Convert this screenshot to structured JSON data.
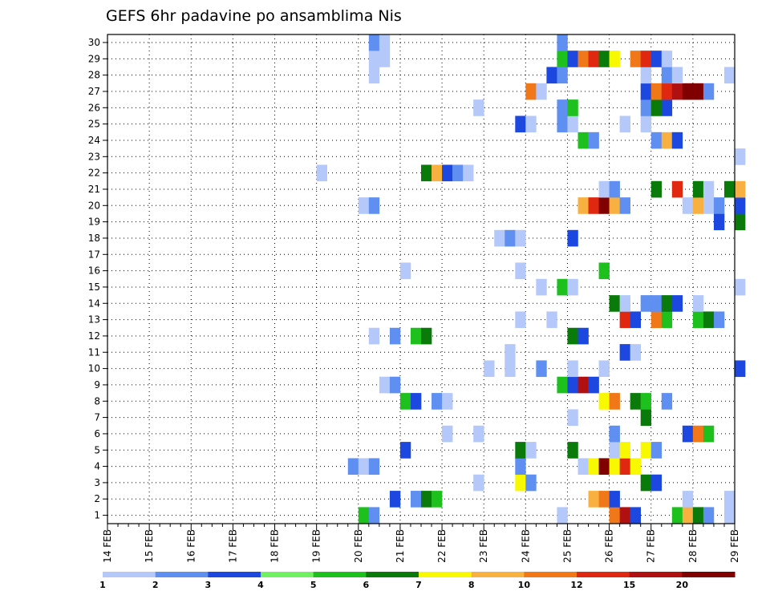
{
  "chart_data": {
    "type": "heatmap",
    "title": "GEFS 6hr padavine po ansamblima Nis",
    "x_ticks": [
      "14 FEB",
      "15 FEB",
      "16 FEB",
      "17 FEB",
      "18 FEB",
      "19 FEB",
      "20 FEB",
      "21 FEB",
      "22 FEB",
      "23 FEB",
      "24 FEB",
      "25 FEB",
      "26 FEB",
      "27 FEB",
      "28 FEB",
      "29 FEB"
    ],
    "y_ticks": [
      "1",
      "2",
      "3",
      "4",
      "5",
      "6",
      "7",
      "8",
      "9",
      "10",
      "11",
      "12",
      "13",
      "14",
      "15",
      "16",
      "17",
      "18",
      "19",
      "20",
      "21",
      "22",
      "23",
      "24",
      "25",
      "26",
      "27",
      "28",
      "29",
      "30"
    ],
    "x_range": [
      "14 FEB",
      "29 FEB"
    ],
    "y_range": [
      1,
      30
    ],
    "time_step_hours": 6,
    "grid": "dotted",
    "colorbar": {
      "position": "bottom",
      "labels": [
        "1",
        "2",
        "3",
        "4",
        "5",
        "6",
        "7",
        "8",
        "10",
        "12",
        "15",
        "20"
      ],
      "colors": [
        "#b4c8fa",
        "#5f8ff0",
        "#1c48e0",
        "#6ef060",
        "#1ec01e",
        "#0a7a0a",
        "#f8f800",
        "#f8b040",
        "#f07818",
        "#e02810",
        "#b01010",
        "#800000"
      ]
    },
    "cells": [
      [
        "20 FEB 00Z",
        1,
        5
      ],
      [
        "20 FEB 06Z",
        1,
        2
      ],
      [
        "24 FEB 18Z",
        1,
        1
      ],
      [
        "26 FEB 00Z",
        1,
        10
      ],
      [
        "26 FEB 06Z",
        1,
        15
      ],
      [
        "26 FEB 12Z",
        1,
        3
      ],
      [
        "27 FEB 12Z",
        1,
        5
      ],
      [
        "27 FEB 18Z",
        1,
        8
      ],
      [
        "28 FEB 00Z",
        1,
        6
      ],
      [
        "28 FEB 06Z",
        1,
        2
      ],
      [
        "28 FEB 18Z",
        1,
        1
      ],
      [
        "20 FEB 18Z",
        2,
        3
      ],
      [
        "21 FEB 06Z",
        2,
        2
      ],
      [
        "21 FEB 12Z",
        2,
        6
      ],
      [
        "21 FEB 18Z",
        2,
        5
      ],
      [
        "25 FEB 12Z",
        2,
        8
      ],
      [
        "25 FEB 18Z",
        2,
        10
      ],
      [
        "26 FEB 00Z",
        2,
        3
      ],
      [
        "27 FEB 18Z",
        2,
        1
      ],
      [
        "28 FEB 18Z",
        2,
        1
      ],
      [
        "22 FEB 18Z",
        3,
        1
      ],
      [
        "23 FEB 18Z",
        3,
        7
      ],
      [
        "24 FEB 00Z",
        3,
        2
      ],
      [
        "26 FEB 18Z",
        3,
        6
      ],
      [
        "27 FEB 00Z",
        3,
        3
      ],
      [
        "19 FEB 18Z",
        4,
        2
      ],
      [
        "20 FEB 00Z",
        4,
        1
      ],
      [
        "20 FEB 06Z",
        4,
        2
      ],
      [
        "23 FEB 18Z",
        4,
        2
      ],
      [
        "25 FEB 06Z",
        4,
        1
      ],
      [
        "25 FEB 12Z",
        4,
        7
      ],
      [
        "25 FEB 18Z",
        4,
        20
      ],
      [
        "26 FEB 00Z",
        4,
        7
      ],
      [
        "26 FEB 06Z",
        4,
        12
      ],
      [
        "26 FEB 12Z",
        4,
        7
      ],
      [
        "21 FEB 00Z",
        5,
        3
      ],
      [
        "23 FEB 18Z",
        5,
        6
      ],
      [
        "24 FEB 00Z",
        5,
        1
      ],
      [
        "25 FEB 00Z",
        5,
        6
      ],
      [
        "26 FEB 00Z",
        5,
        1
      ],
      [
        "26 FEB 06Z",
        5,
        7
      ],
      [
        "26 FEB 18Z",
        5,
        7
      ],
      [
        "27 FEB 00Z",
        5,
        2
      ],
      [
        "22 FEB 00Z",
        6,
        1
      ],
      [
        "22 FEB 18Z",
        6,
        1
      ],
      [
        "26 FEB 00Z",
        6,
        2
      ],
      [
        "27 FEB 18Z",
        6,
        3
      ],
      [
        "28 FEB 00Z",
        6,
        10
      ],
      [
        "28 FEB 06Z",
        6,
        5
      ],
      [
        "25 FEB 00Z",
        7,
        1
      ],
      [
        "26 FEB 18Z",
        7,
        6
      ],
      [
        "21 FEB 00Z",
        8,
        5
      ],
      [
        "21 FEB 06Z",
        8,
        3
      ],
      [
        "21 FEB 18Z",
        8,
        2
      ],
      [
        "22 FEB 00Z",
        8,
        1
      ],
      [
        "25 FEB 18Z",
        8,
        7
      ],
      [
        "26 FEB 00Z",
        8,
        10
      ],
      [
        "26 FEB 12Z",
        8,
        6
      ],
      [
        "26 FEB 18Z",
        8,
        5
      ],
      [
        "27 FEB 06Z",
        8,
        2
      ],
      [
        "20 FEB 12Z",
        9,
        1
      ],
      [
        "20 FEB 18Z",
        9,
        2
      ],
      [
        "24 FEB 18Z",
        9,
        5
      ],
      [
        "25 FEB 00Z",
        9,
        3
      ],
      [
        "25 FEB 06Z",
        9,
        15
      ],
      [
        "25 FEB 12Z",
        9,
        3
      ],
      [
        "23 FEB 00Z",
        10,
        1
      ],
      [
        "23 FEB 12Z",
        10,
        1
      ],
      [
        "24 FEB 06Z",
        10,
        2
      ],
      [
        "25 FEB 00Z",
        10,
        1
      ],
      [
        "25 FEB 18Z",
        10,
        1
      ],
      [
        "29 FEB 00Z",
        10,
        3
      ],
      [
        "23 FEB 12Z",
        11,
        1
      ],
      [
        "26 FEB 06Z",
        11,
        3
      ],
      [
        "26 FEB 12Z",
        11,
        1
      ],
      [
        "20 FEB 06Z",
        12,
        1
      ],
      [
        "20 FEB 18Z",
        12,
        2
      ],
      [
        "21 FEB 06Z",
        12,
        5
      ],
      [
        "21 FEB 12Z",
        12,
        6
      ],
      [
        "25 FEB 00Z",
        12,
        6
      ],
      [
        "25 FEB 06Z",
        12,
        3
      ],
      [
        "23 FEB 18Z",
        13,
        1
      ],
      [
        "24 FEB 12Z",
        13,
        1
      ],
      [
        "26 FEB 06Z",
        13,
        12
      ],
      [
        "26 FEB 12Z",
        13,
        3
      ],
      [
        "27 FEB 00Z",
        13,
        10
      ],
      [
        "27 FEB 06Z",
        13,
        5
      ],
      [
        "28 FEB 00Z",
        13,
        5
      ],
      [
        "28 FEB 06Z",
        13,
        6
      ],
      [
        "28 FEB 12Z",
        13,
        2
      ],
      [
        "26 FEB 00Z",
        14,
        6
      ],
      [
        "26 FEB 06Z",
        14,
        1
      ],
      [
        "26 FEB 18Z",
        14,
        2
      ],
      [
        "27 FEB 00Z",
        14,
        2
      ],
      [
        "27 FEB 06Z",
        14,
        6
      ],
      [
        "27 FEB 12Z",
        14,
        3
      ],
      [
        "28 FEB 00Z",
        14,
        1
      ],
      [
        "24 FEB 06Z",
        15,
        1
      ],
      [
        "24 FEB 18Z",
        15,
        5
      ],
      [
        "25 FEB 00Z",
        15,
        1
      ],
      [
        "29 FEB 00Z",
        15,
        1
      ],
      [
        "21 FEB 00Z",
        16,
        1
      ],
      [
        "23 FEB 18Z",
        16,
        1
      ],
      [
        "25 FEB 18Z",
        16,
        5
      ],
      [
        "23 FEB 06Z",
        18,
        1
      ],
      [
        "23 FEB 12Z",
        18,
        2
      ],
      [
        "23 FEB 18Z",
        18,
        1
      ],
      [
        "25 FEB 00Z",
        18,
        3
      ],
      [
        "28 FEB 12Z",
        19,
        3
      ],
      [
        "29 FEB 00Z",
        19,
        6
      ],
      [
        "20 FEB 00Z",
        20,
        1
      ],
      [
        "20 FEB 06Z",
        20,
        2
      ],
      [
        "25 FEB 06Z",
        20,
        8
      ],
      [
        "25 FEB 12Z",
        20,
        12
      ],
      [
        "25 FEB 18Z",
        20,
        20
      ],
      [
        "26 FEB 00Z",
        20,
        8
      ],
      [
        "26 FEB 06Z",
        20,
        2
      ],
      [
        "27 FEB 18Z",
        20,
        1
      ],
      [
        "28 FEB 00Z",
        20,
        8
      ],
      [
        "28 FEB 06Z",
        20,
        1
      ],
      [
        "28 FEB 12Z",
        20,
        2
      ],
      [
        "29 FEB 00Z",
        20,
        3
      ],
      [
        "25 FEB 18Z",
        21,
        1
      ],
      [
        "26 FEB 00Z",
        21,
        2
      ],
      [
        "27 FEB 00Z",
        21,
        6
      ],
      [
        "27 FEB 12Z",
        21,
        12
      ],
      [
        "28 FEB 00Z",
        21,
        6
      ],
      [
        "28 FEB 06Z",
        21,
        1
      ],
      [
        "28 FEB 18Z",
        21,
        6
      ],
      [
        "29 FEB 00Z",
        21,
        8
      ],
      [
        "19 FEB 00Z",
        22,
        1
      ],
      [
        "21 FEB 12Z",
        22,
        6
      ],
      [
        "21 FEB 18Z",
        22,
        8
      ],
      [
        "22 FEB 00Z",
        22,
        3
      ],
      [
        "22 FEB 06Z",
        22,
        2
      ],
      [
        "22 FEB 12Z",
        22,
        1
      ],
      [
        "29 FEB 00Z",
        23,
        1
      ],
      [
        "25 FEB 06Z",
        24,
        5
      ],
      [
        "25 FEB 12Z",
        24,
        2
      ],
      [
        "27 FEB 00Z",
        24,
        2
      ],
      [
        "27 FEB 06Z",
        24,
        8
      ],
      [
        "27 FEB 12Z",
        24,
        3
      ],
      [
        "23 FEB 18Z",
        25,
        3
      ],
      [
        "24 FEB 00Z",
        25,
        1
      ],
      [
        "24 FEB 18Z",
        25,
        2
      ],
      [
        "25 FEB 00Z",
        25,
        1
      ],
      [
        "26 FEB 06Z",
        25,
        1
      ],
      [
        "26 FEB 18Z",
        25,
        1
      ],
      [
        "22 FEB 18Z",
        26,
        1
      ],
      [
        "24 FEB 18Z",
        26,
        2
      ],
      [
        "25 FEB 00Z",
        26,
        5
      ],
      [
        "26 FEB 18Z",
        26,
        2
      ],
      [
        "27 FEB 00Z",
        26,
        6
      ],
      [
        "27 FEB 06Z",
        26,
        3
      ],
      [
        "24 FEB 00Z",
        27,
        10
      ],
      [
        "24 FEB 06Z",
        27,
        1
      ],
      [
        "26 FEB 18Z",
        27,
        3
      ],
      [
        "27 FEB 00Z",
        27,
        10
      ],
      [
        "27 FEB 06Z",
        27,
        12
      ],
      [
        "27 FEB 12Z",
        27,
        15
      ],
      [
        "27 FEB 18Z",
        27,
        20
      ],
      [
        "28 FEB 00Z",
        27,
        20
      ],
      [
        "28 FEB 06Z",
        27,
        2
      ],
      [
        "20 FEB 06Z",
        28,
        1
      ],
      [
        "24 FEB 12Z",
        28,
        3
      ],
      [
        "24 FEB 18Z",
        28,
        2
      ],
      [
        "26 FEB 18Z",
        28,
        1
      ],
      [
        "27 FEB 06Z",
        28,
        2
      ],
      [
        "27 FEB 12Z",
        28,
        1
      ],
      [
        "28 FEB 18Z",
        28,
        1
      ],
      [
        "20 FEB 06Z",
        29,
        1
      ],
      [
        "20 FEB 12Z",
        29,
        1
      ],
      [
        "24 FEB 18Z",
        29,
        5
      ],
      [
        "25 FEB 00Z",
        29,
        3
      ],
      [
        "25 FEB 06Z",
        29,
        10
      ],
      [
        "25 FEB 12Z",
        29,
        12
      ],
      [
        "25 FEB 18Z",
        29,
        6
      ],
      [
        "26 FEB 00Z",
        29,
        7
      ],
      [
        "26 FEB 12Z",
        29,
        10
      ],
      [
        "26 FEB 18Z",
        29,
        12
      ],
      [
        "27 FEB 00Z",
        29,
        3
      ],
      [
        "27 FEB 06Z",
        29,
        1
      ],
      [
        "20 FEB 06Z",
        30,
        2
      ],
      [
        "20 FEB 12Z",
        30,
        1
      ],
      [
        "24 FEB 18Z",
        30,
        2
      ]
    ]
  }
}
